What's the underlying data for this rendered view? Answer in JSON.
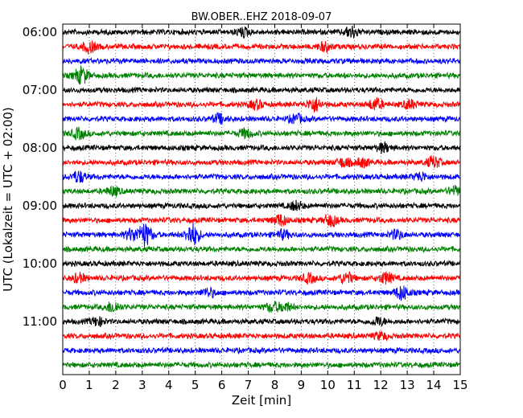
{
  "chart_data": {
    "type": "line",
    "title": "BW.OBER..EHZ 2018-09-07",
    "xlabel": "Zeit  [min]",
    "ylabel": "UTC (Lokalzeit = UTC + 02:00)",
    "xlim": [
      0,
      15
    ],
    "x_ticks": [
      0,
      1,
      2,
      3,
      4,
      5,
      6,
      7,
      8,
      9,
      10,
      11,
      12,
      13,
      14,
      15
    ],
    "y_tick_labels": [
      "06:00",
      "07:00",
      "08:00",
      "09:00",
      "10:00",
      "11:00"
    ],
    "grid": "vertical dotted lines at each minute",
    "trace_colors": [
      "#000000",
      "#ff0000",
      "#0000ff",
      "#008000"
    ],
    "traces_per_hour": 4,
    "minutes_per_trace": 15,
    "start_time": "06:00",
    "end_time": "11:45",
    "series": [
      {
        "start": "06:00",
        "color": "#000000",
        "events": [
          {
            "x": 6.8,
            "a": 1.5
          },
          {
            "x": 10.9,
            "a": 2
          }
        ]
      },
      {
        "start": "06:15",
        "color": "#ff0000",
        "events": [
          {
            "x": 1.0,
            "a": 2
          },
          {
            "x": 9.9,
            "a": 1.5
          }
        ]
      },
      {
        "start": "06:30",
        "color": "#0000ff",
        "events": []
      },
      {
        "start": "06:45",
        "color": "#008000",
        "events": [
          {
            "x": 0.7,
            "a": 3
          }
        ]
      },
      {
        "start": "07:00",
        "color": "#000000",
        "events": []
      },
      {
        "start": "07:15",
        "color": "#ff0000",
        "events": [
          {
            "x": 7.3,
            "a": 1.5
          },
          {
            "x": 9.5,
            "a": 2.5
          },
          {
            "x": 11.8,
            "a": 2
          },
          {
            "x": 13.1,
            "a": 1.5
          }
        ]
      },
      {
        "start": "07:30",
        "color": "#0000ff",
        "events": [
          {
            "x": 5.9,
            "a": 1.5
          },
          {
            "x": 8.8,
            "a": 1.5
          }
        ]
      },
      {
        "start": "07:45",
        "color": "#008000",
        "events": [
          {
            "x": 0.6,
            "a": 1.8
          },
          {
            "x": 6.9,
            "a": 1.5
          }
        ]
      },
      {
        "start": "08:00",
        "color": "#000000",
        "events": [
          {
            "x": 12.1,
            "a": 1.5
          }
        ]
      },
      {
        "start": "08:15",
        "color": "#ff0000",
        "events": [
          {
            "x": 10.6,
            "a": 1.5
          },
          {
            "x": 11.3,
            "a": 1.5
          },
          {
            "x": 14.0,
            "a": 2
          }
        ]
      },
      {
        "start": "08:30",
        "color": "#0000ff",
        "events": [
          {
            "x": 0.6,
            "a": 2
          },
          {
            "x": 13.5,
            "a": 1.5
          }
        ]
      },
      {
        "start": "08:45",
        "color": "#008000",
        "events": [
          {
            "x": 1.9,
            "a": 1.5
          },
          {
            "x": 14.8,
            "a": 1.5
          }
        ]
      },
      {
        "start": "09:00",
        "color": "#000000",
        "events": [
          {
            "x": 8.8,
            "a": 1.5
          }
        ]
      },
      {
        "start": "09:15",
        "color": "#ff0000",
        "events": [
          {
            "x": 8.2,
            "a": 2
          },
          {
            "x": 10.1,
            "a": 2
          }
        ]
      },
      {
        "start": "09:30",
        "color": "#0000ff",
        "events": [
          {
            "x": 2.6,
            "a": 2
          },
          {
            "x": 3.1,
            "a": 4
          },
          {
            "x": 4.9,
            "a": 4
          },
          {
            "x": 8.3,
            "a": 1.5
          },
          {
            "x": 12.6,
            "a": 1.5
          }
        ]
      },
      {
        "start": "09:45",
        "color": "#008000",
        "events": []
      },
      {
        "start": "10:00",
        "color": "#000000",
        "events": []
      },
      {
        "start": "10:15",
        "color": "#ff0000",
        "events": [
          {
            "x": 0.6,
            "a": 1.5
          },
          {
            "x": 9.3,
            "a": 1.5
          },
          {
            "x": 10.7,
            "a": 2
          },
          {
            "x": 12.2,
            "a": 2
          }
        ]
      },
      {
        "start": "10:30",
        "color": "#0000ff",
        "events": [
          {
            "x": 5.5,
            "a": 1.5
          },
          {
            "x": 12.8,
            "a": 2.5
          }
        ]
      },
      {
        "start": "10:45",
        "color": "#008000",
        "events": [
          {
            "x": 1.9,
            "a": 2
          },
          {
            "x": 7.9,
            "a": 1.5
          },
          {
            "x": 8.4,
            "a": 1.5
          }
        ]
      },
      {
        "start": "11:00",
        "color": "#000000",
        "events": [
          {
            "x": 1.3,
            "a": 1.5
          },
          {
            "x": 11.9,
            "a": 1.5
          }
        ]
      },
      {
        "start": "11:15",
        "color": "#ff0000",
        "events": [
          {
            "x": 12.0,
            "a": 1.2
          }
        ]
      },
      {
        "start": "11:30",
        "color": "#0000ff",
        "events": []
      },
      {
        "start": "11:45",
        "color": "#008000",
        "events": []
      }
    ]
  }
}
